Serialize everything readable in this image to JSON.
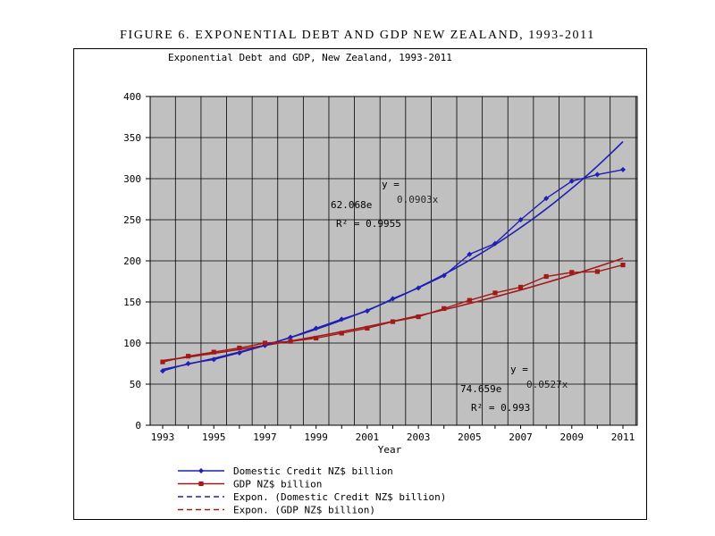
{
  "figure_title": "FIGURE 6. EXPONENTIAL DEBT AND GDP NEW ZEALAND, 1993-2011",
  "chart_data": {
    "type": "line",
    "title": "Exponential Debt and GDP, New Zealand, 1993-2011",
    "xlabel": "Year",
    "ylabel": "",
    "xlim": [
      1993,
      2011
    ],
    "ylim": [
      0,
      400
    ],
    "x_ticks": [
      "1993",
      "1995",
      "1997",
      "1999",
      "2001",
      "2003",
      "2005",
      "2007",
      "2009",
      "2011"
    ],
    "y_ticks": [
      "0",
      "50",
      "100",
      "150",
      "200",
      "250",
      "300",
      "350",
      "400"
    ],
    "grid": true,
    "legend_position": "bottom-left",
    "x": [
      1993,
      1994,
      1995,
      1996,
      1997,
      1998,
      1999,
      2000,
      2001,
      2002,
      2003,
      2004,
      2005,
      2006,
      2007,
      2008,
      2009,
      2010,
      2011
    ],
    "series": [
      {
        "name": "Domestic Credit NZ$ billion",
        "color": "#1f1fb4",
        "marker": "diamond",
        "values": [
          66,
          75,
          80,
          88,
          97,
          107,
          118,
          129,
          139,
          154,
          167,
          182,
          208,
          221,
          250,
          276,
          297,
          305,
          311
        ]
      },
      {
        "name": "GDP NZ$ billion",
        "color": "#a31818",
        "marker": "square",
        "values": [
          77,
          84,
          89,
          94,
          100,
          102,
          106,
          112,
          118,
          126,
          132,
          142,
          152,
          161,
          168,
          181,
          186,
          187,
          195
        ]
      }
    ],
    "trendlines": [
      {
        "name": "Expon. (Domestic Credit NZ$ billion)",
        "color": "#1f1fb4",
        "dash": "dashed",
        "a": 62.068,
        "b": 0.0903,
        "equation_line1": "y =",
        "equation_line2": "62.068e",
        "exponent": "0.0903x",
        "r2_label": "R² = 0.9955"
      },
      {
        "name": "Expon. (GDP NZ$ billion)",
        "color": "#a31818",
        "dash": "dashed",
        "a": 74.659,
        "b": 0.0527,
        "equation_line1": "y =",
        "equation_line2": "74.659e",
        "exponent": "0.0527x",
        "r2_label": "R² = 0.993"
      }
    ],
    "plot_background": "#c0c0c0"
  }
}
